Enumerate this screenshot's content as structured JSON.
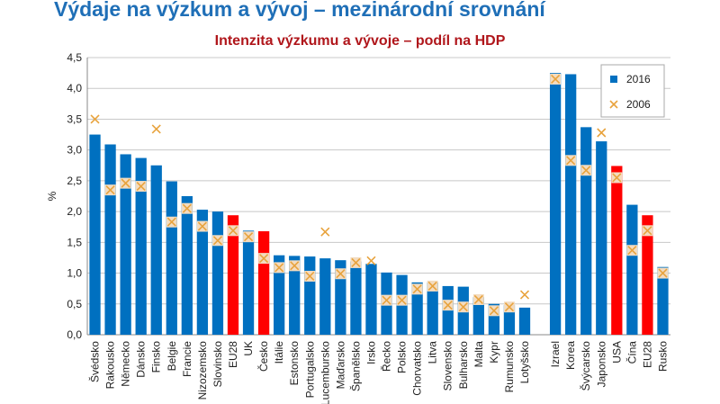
{
  "chart_data": {
    "type": "bar",
    "title": "Výdaje na výzkum a vývoj – mezinárodní srovnání",
    "subtitle": "Intenzita výzkumu a vývoje – podíl na HDP",
    "y_label": "%",
    "categories": [
      "Švédsko",
      "Rakousko",
      "Německo",
      "Dánsko",
      "Finsko",
      "Belgie",
      "Francie",
      "Nizozemsko",
      "Slovinsko",
      "EU28",
      "UK",
      "Česko",
      "Itálie",
      "Estonsko",
      "Portugalsko",
      "Lucembursko",
      "Maďarsko",
      "Španělsko",
      "Irsko",
      "Řecko",
      "Polsko",
      "Chorvatsko",
      "Litva",
      "Slovensko",
      "Bulharsko",
      "Malta",
      "Kypr",
      "Rumunsko",
      "Lotyšsko",
      null,
      "Izrael",
      "Korea",
      "Švýcarsko",
      "Japonsko",
      "USA",
      "Čína",
      "EU28",
      "Rusko"
    ],
    "series": [
      {
        "name": "2016",
        "color": "#0070c0",
        "colors": [
          "#0070c0",
          "#0070c0",
          "#0070c0",
          "#0070c0",
          "#0070c0",
          "#0070c0",
          "#0070c0",
          "#0070c0",
          "#0070c0",
          "#ff0000",
          "#0070c0",
          "#ff0000",
          "#0070c0",
          "#0070c0",
          "#0070c0",
          "#0070c0",
          "#0070c0",
          "#0070c0",
          "#0070c0",
          "#0070c0",
          "#0070c0",
          "#0070c0",
          "#0070c0",
          "#0070c0",
          "#0070c0",
          "#0070c0",
          "#0070c0",
          "#0070c0",
          "#0070c0",
          null,
          "#0070c0",
          "#0070c0",
          "#0070c0",
          "#0070c0",
          "#ff0000",
          "#0070c0",
          "#ff0000",
          "#0070c0"
        ],
        "values": [
          3.25,
          3.09,
          2.93,
          2.87,
          2.75,
          2.49,
          2.25,
          2.03,
          2.0,
          1.94,
          1.69,
          1.68,
          1.29,
          1.28,
          1.27,
          1.24,
          1.21,
          1.19,
          1.15,
          1.01,
          0.97,
          0.85,
          0.85,
          0.79,
          0.78,
          0.61,
          0.5,
          0.48,
          0.44,
          null,
          4.25,
          4.23,
          3.37,
          3.14,
          2.74,
          2.11,
          1.94,
          1.1
        ]
      },
      {
        "name": "2006",
        "color": "#e8a33d",
        "marker": "x",
        "values": [
          3.5,
          2.35,
          2.46,
          2.41,
          3.34,
          1.83,
          2.05,
          1.76,
          1.53,
          1.69,
          1.59,
          1.24,
          1.09,
          1.12,
          0.95,
          1.67,
          0.99,
          1.17,
          1.2,
          0.56,
          0.56,
          0.74,
          0.79,
          0.48,
          0.45,
          0.57,
          0.39,
          0.45,
          0.65,
          null,
          4.15,
          2.83,
          2.67,
          3.28,
          2.55,
          1.37,
          1.69,
          1.0
        ]
      }
    ],
    "ylim": [
      0,
      4.5
    ],
    "yticks": [
      {
        "value": 0,
        "label": "0,0"
      },
      {
        "value": 0.5,
        "label": "0,5"
      },
      {
        "value": 1,
        "label": "1,0"
      },
      {
        "value": 1.5,
        "label": "1,5"
      },
      {
        "value": 2,
        "label": "2,0"
      },
      {
        "value": 2.5,
        "label": "2,5"
      },
      {
        "value": 3,
        "label": "3,0"
      },
      {
        "value": 3.5,
        "label": "3,5"
      },
      {
        "value": 4,
        "label": "4,0"
      },
      {
        "value": 4.5,
        "label": "4,5"
      }
    ],
    "grid": true,
    "legend": "top-right"
  }
}
